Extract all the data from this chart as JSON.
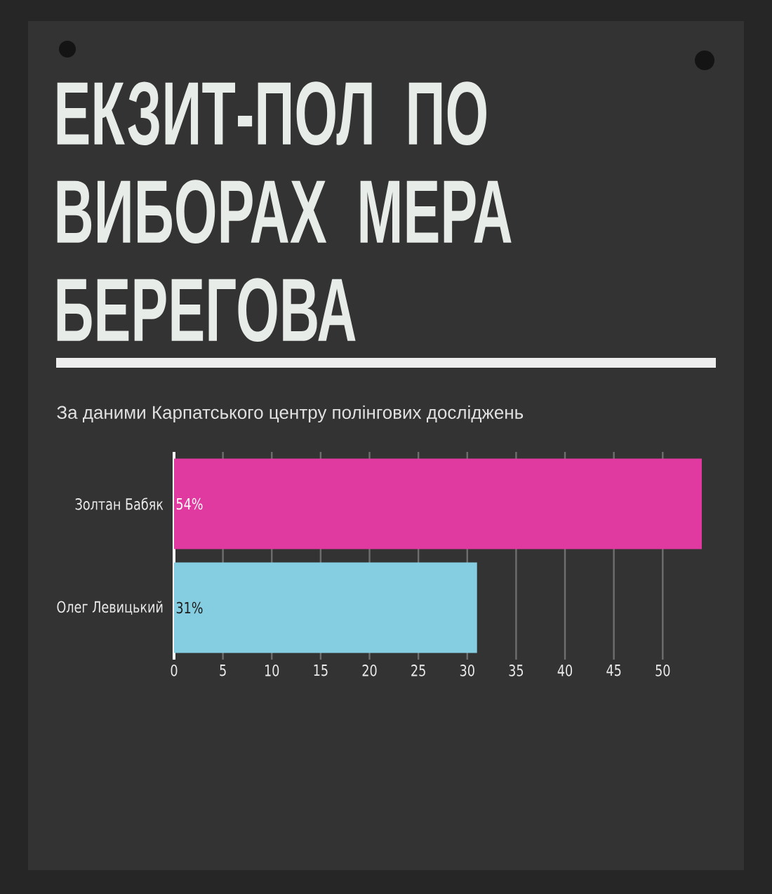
{
  "chart_data": {
    "type": "bar",
    "orientation": "horizontal",
    "title": "ЕКЗИТ-ПОЛ ПО ВИБОРАХ МЕРА БЕРЕГОВА",
    "subtitle": "За даними Карпатського центру полінгових досліджень",
    "categories": [
      "Золтан Бабяк",
      "Олег Левицький"
    ],
    "values": [
      54,
      31
    ],
    "colors": [
      "#e0399f",
      "#85cde0"
    ],
    "value_labels": [
      "54%",
      "31%"
    ],
    "xlim": [
      0,
      54
    ],
    "xticks": [
      0,
      5,
      10,
      15,
      20,
      25,
      30,
      35,
      40,
      45,
      50
    ],
    "grid": "x"
  }
}
